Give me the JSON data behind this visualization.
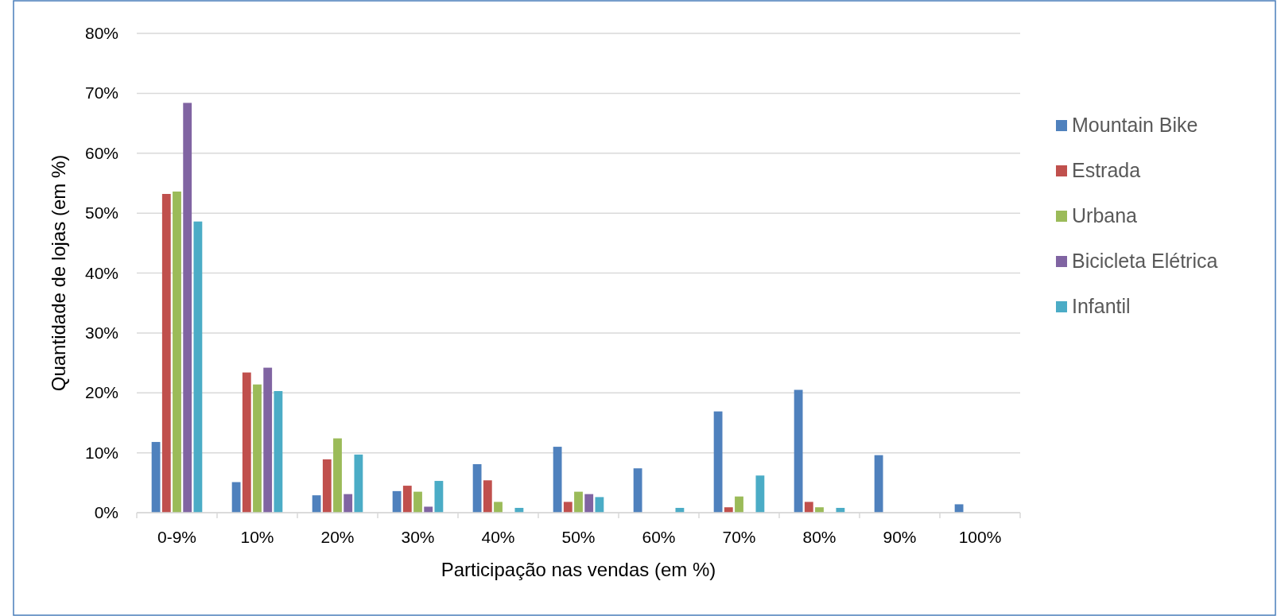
{
  "chart_data": {
    "type": "bar",
    "xlabel": "Participação nas vendas (em %)",
    "ylabel": "Quantidade de lojas (em %)",
    "categories": [
      "0-9%",
      "10%",
      "20%",
      "30%",
      "40%",
      "50%",
      "60%",
      "70%",
      "80%",
      "90%",
      "100%"
    ],
    "series": [
      {
        "name": "Mountain Bike",
        "color": "#4f81bd",
        "values": [
          11.8,
          5.1,
          2.9,
          3.6,
          8.1,
          11.0,
          7.4,
          16.9,
          20.5,
          9.6,
          1.4
        ]
      },
      {
        "name": "Estrada",
        "color": "#c0504d",
        "values": [
          53.2,
          23.4,
          8.9,
          4.5,
          5.4,
          1.8,
          0,
          0.9,
          1.8,
          0,
          0
        ]
      },
      {
        "name": "Urbana",
        "color": "#9bbb59",
        "values": [
          53.6,
          21.4,
          12.4,
          3.5,
          1.8,
          3.5,
          0,
          2.7,
          0.9,
          0,
          0
        ]
      },
      {
        "name": "Bicicleta Elétrica",
        "color": "#8064a2",
        "values": [
          68.4,
          24.2,
          3.1,
          1.0,
          0,
          3.1,
          0,
          0,
          0,
          0,
          0
        ]
      },
      {
        "name": "Infantil",
        "color": "#4bacc6",
        "values": [
          48.6,
          20.3,
          9.7,
          5.3,
          0.8,
          2.6,
          0.8,
          6.2,
          0.8,
          0,
          0
        ]
      }
    ],
    "ylim": [
      0,
      80
    ],
    "yticks": [
      {
        "value": 0,
        "label": "0%"
      },
      {
        "value": 10,
        "label": "10%"
      },
      {
        "value": 20,
        "label": "20%"
      },
      {
        "value": 30,
        "label": "30%"
      },
      {
        "value": 40,
        "label": "40%"
      },
      {
        "value": 50,
        "label": "50%"
      },
      {
        "value": 60,
        "label": "60%"
      },
      {
        "value": 70,
        "label": "70%"
      },
      {
        "value": 80,
        "label": "80%"
      }
    ],
    "grid": "y",
    "legend": "right"
  }
}
